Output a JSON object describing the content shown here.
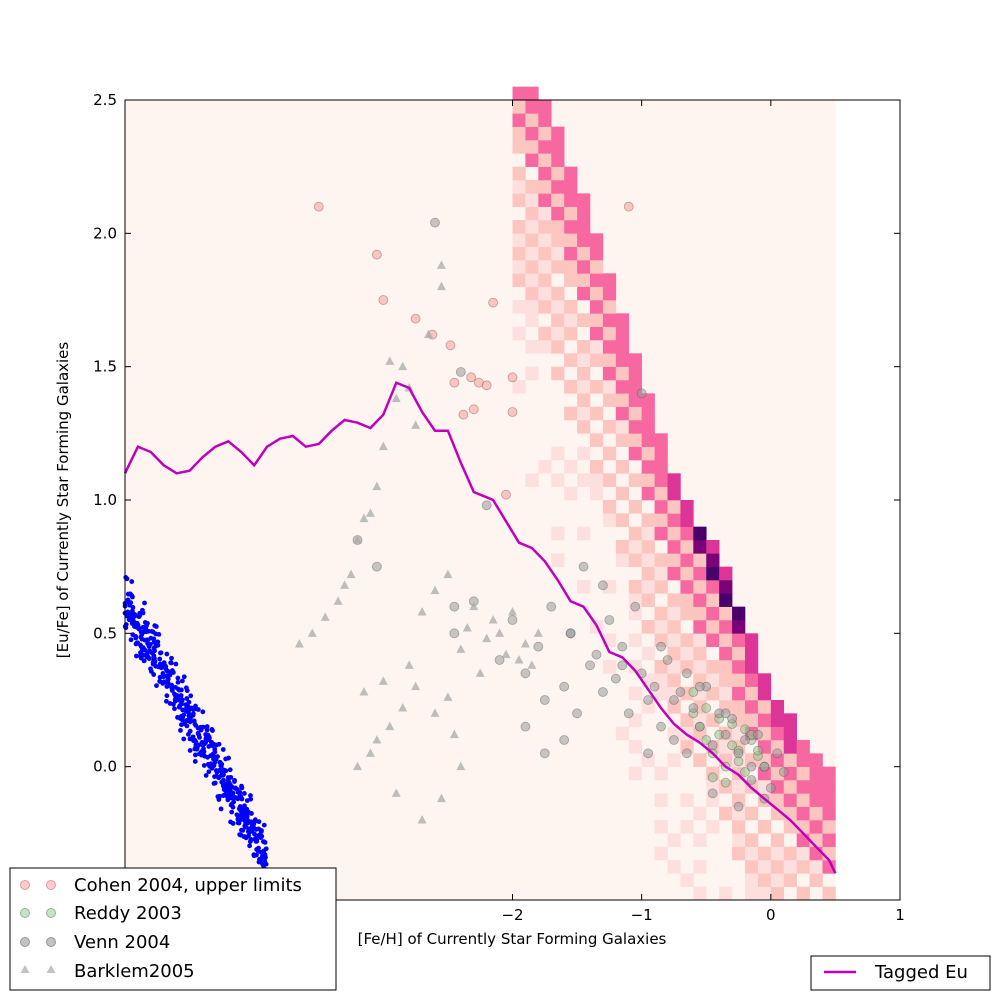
{
  "chart_data": {
    "type": "scatter",
    "title": "",
    "xlabel": "[Fe/H] of Currently Star Forming Galaxies",
    "ylabel": "[Eu/Fe] of Currently Star Forming Galaxies",
    "xlim": [
      -5,
      1
    ],
    "ylim": [
      -0.5,
      2.5
    ],
    "xticks": [
      -2,
      -1,
      0,
      1
    ],
    "xtick_labels": [
      "−2",
      "−1",
      "0",
      "1"
    ],
    "yticks": [
      0.0,
      0.5,
      1.0,
      1.5,
      2.0,
      2.5
    ],
    "ytick_labels": [
      "0.0",
      "0.5",
      "1.0",
      "1.5",
      "2.0",
      "2.5"
    ],
    "grid": false,
    "legends": [
      {
        "placement": "lower-left",
        "entries": [
          "Cohen 2004, upper limits",
          "Reddy 2003",
          "Venn 2004",
          "Barklem2005"
        ]
      },
      {
        "placement": "lower-right",
        "entries": [
          "Tagged Eu"
        ]
      }
    ],
    "heatmap": {
      "description_colors": [
        "#fff5f0",
        "#fcc5c0",
        "#f768a1",
        "#dd3497",
        "#7a0177",
        "#49006a"
      ],
      "ridge": [
        [
          0.5,
          -0.1
        ],
        [
          0.0,
          0.25
        ],
        [
          -0.4,
          0.75
        ],
        [
          -0.7,
          1.0
        ],
        [
          -1.0,
          1.4
        ],
        [
          -1.3,
          1.9
        ],
        [
          -1.7,
          2.4
        ]
      ],
      "cell_dx": 0.1,
      "cell_dy": 0.05
    },
    "series": [
      {
        "name": "Tagged Eu",
        "kind": "line",
        "color": "#bf00bf",
        "x": [
          -5.0,
          -4.9,
          -4.8,
          -4.7,
          -4.6,
          -4.5,
          -4.4,
          -4.3,
          -4.2,
          -4.1,
          -4.0,
          -3.9,
          -3.8,
          -3.7,
          -3.6,
          -3.5,
          -3.4,
          -3.3,
          -3.2,
          -3.1,
          -3.0,
          -2.9,
          -2.8,
          -2.7,
          -2.6,
          -2.5,
          -2.4,
          -2.3,
          -2.2,
          -2.15,
          -2.05,
          -1.95,
          -1.85,
          -1.75,
          -1.65,
          -1.55,
          -1.45,
          -1.35,
          -1.25,
          -1.15,
          -1.05,
          -0.95,
          -0.85,
          -0.75,
          -0.65,
          -0.55,
          -0.45,
          -0.35,
          -0.25,
          -0.15,
          -0.05,
          0.05,
          0.15,
          0.25,
          0.35,
          0.45,
          0.5
        ],
        "y": [
          1.1,
          1.2,
          1.18,
          1.13,
          1.1,
          1.11,
          1.16,
          1.2,
          1.22,
          1.18,
          1.13,
          1.2,
          1.23,
          1.24,
          1.2,
          1.21,
          1.26,
          1.3,
          1.29,
          1.27,
          1.32,
          1.44,
          1.42,
          1.33,
          1.26,
          1.26,
          1.14,
          1.03,
          1.01,
          1.0,
          0.92,
          0.84,
          0.82,
          0.77,
          0.7,
          0.62,
          0.6,
          0.53,
          0.43,
          0.41,
          0.36,
          0.29,
          0.22,
          0.16,
          0.12,
          0.09,
          0.05,
          0.0,
          -0.03,
          -0.08,
          -0.12,
          -0.16,
          -0.2,
          -0.25,
          -0.3,
          -0.35,
          -0.4
        ]
      },
      {
        "name": "Cohen 2004, upper limits",
        "kind": "scatter",
        "marker": "circle",
        "color": "#ff9999",
        "x": [
          -3.5,
          -3.05,
          -3.0,
          -2.75,
          -2.62,
          -2.48,
          -2.45,
          -2.38,
          -2.32,
          -2.3,
          -2.26,
          -2.2,
          -2.15,
          -2.05,
          -2.0,
          -2.0,
          -1.1
        ],
        "y": [
          2.1,
          1.92,
          1.75,
          1.68,
          1.62,
          1.58,
          1.44,
          1.32,
          1.46,
          1.34,
          1.44,
          1.43,
          1.74,
          1.02,
          1.46,
          1.33,
          2.1
        ]
      },
      {
        "name": "Reddy 2003",
        "kind": "scatter",
        "marker": "circle",
        "color": "#90c890",
        "x": [
          -0.6,
          -0.55,
          -0.5,
          -0.45,
          -0.4,
          -0.35,
          -0.3,
          -0.25,
          -0.2,
          -0.15,
          -0.1,
          -0.05,
          -0.6,
          -0.5,
          -0.4,
          -0.3,
          -0.2,
          -0.1,
          -0.45,
          -0.35,
          -0.25,
          -0.15
        ],
        "y": [
          0.2,
          0.15,
          0.1,
          0.05,
          0.12,
          0.0,
          0.08,
          0.02,
          -0.02,
          0.1,
          0.04,
          0.0,
          0.28,
          0.22,
          0.18,
          0.16,
          0.14,
          0.06,
          -0.04,
          -0.06,
          0.06,
          0.12
        ]
      },
      {
        "name": "Venn 2004",
        "kind": "scatter",
        "marker": "circle",
        "color": "#999999",
        "x": [
          -2.3,
          -2.45,
          -2.1,
          -2.0,
          -1.9,
          -1.8,
          -1.75,
          -1.7,
          -1.6,
          -1.55,
          -1.5,
          -1.4,
          -1.3,
          -1.2,
          -1.15,
          -1.1,
          -1.0,
          -0.95,
          -0.9,
          -0.85,
          -0.8,
          -0.75,
          -0.7,
          -0.65,
          -0.6,
          -0.55,
          -0.5,
          -0.45,
          -0.4,
          -0.35,
          -0.3,
          -0.25,
          -0.2,
          -0.15,
          -0.1,
          -0.05,
          0.0,
          0.05,
          0.1,
          -1.0,
          -1.3,
          -1.6,
          -1.9,
          -2.2,
          -2.4,
          -1.45,
          -1.25,
          -1.05,
          -0.85,
          -0.65,
          -0.45,
          -0.25,
          -0.05,
          -1.75,
          -1.55,
          -1.35,
          -1.15,
          -0.95,
          -0.75,
          -0.55,
          -0.35,
          -0.15,
          -3.2,
          -3.05,
          -2.6,
          -2.45
        ],
        "y": [
          0.62,
          0.5,
          0.4,
          0.55,
          0.35,
          0.45,
          0.25,
          0.6,
          0.3,
          0.5,
          0.2,
          0.38,
          0.28,
          0.33,
          0.45,
          0.2,
          0.35,
          0.25,
          0.3,
          0.15,
          0.4,
          0.1,
          0.28,
          0.05,
          0.22,
          0.15,
          0.3,
          0.08,
          0.2,
          0.12,
          0.18,
          0.05,
          0.1,
          -0.05,
          0.12,
          0.0,
          -0.08,
          0.05,
          -0.02,
          1.4,
          0.68,
          0.1,
          0.15,
          0.98,
          1.48,
          0.75,
          0.55,
          0.6,
          0.45,
          0.35,
          -0.1,
          -0.15,
          -0.12,
          0.05,
          0.5,
          0.42,
          0.38,
          0.05,
          0.25,
          0.3,
          0.2,
          0.0,
          0.85,
          0.75,
          2.04,
          0.6
        ]
      },
      {
        "name": "Barklem2005",
        "kind": "scatter",
        "marker": "triangle",
        "color": "#aaaaaa",
        "x": [
          -2.55,
          -2.55,
          -2.65,
          -2.75,
          -2.8,
          -2.85,
          -2.9,
          -2.95,
          -3.0,
          -3.05,
          -3.1,
          -3.15,
          -3.2,
          -3.25,
          -3.3,
          -3.35,
          -3.45,
          -3.55,
          -3.65,
          -2.6,
          -2.7,
          -2.5,
          -2.4,
          -2.35,
          -2.3,
          -2.25,
          -2.2,
          -2.15,
          -2.1,
          -2.05,
          -2.0,
          -1.95,
          -1.9,
          -1.85,
          -1.8,
          -2.75,
          -2.85,
          -2.95,
          -3.05,
          -3.1,
          -3.2,
          -2.6,
          -2.45,
          -2.5,
          -2.8,
          -3.0,
          -3.15,
          -2.9,
          -2.7,
          -2.55,
          -2.4
        ],
        "y": [
          1.88,
          1.8,
          1.62,
          1.28,
          1.42,
          1.5,
          1.38,
          1.52,
          1.2,
          1.05,
          0.95,
          0.93,
          0.85,
          0.72,
          0.68,
          0.62,
          0.56,
          0.5,
          0.46,
          0.66,
          0.58,
          0.72,
          0.44,
          0.52,
          0.6,
          0.35,
          0.48,
          0.55,
          0.5,
          0.42,
          0.58,
          0.4,
          0.46,
          0.38,
          0.5,
          0.3,
          0.22,
          0.15,
          0.1,
          0.05,
          0.0,
          0.2,
          0.12,
          0.26,
          0.38,
          0.32,
          0.28,
          -0.1,
          -0.2,
          -0.12,
          0.0
        ]
      },
      {
        "name": "",
        "kind": "scatter",
        "marker": "dot",
        "color": "#0000ff",
        "band": {
          "x_range": [
            -5.0,
            -3.9
          ],
          "y_at_xmin": 0.62,
          "y_at_xmax": -0.35,
          "scatter": 0.07,
          "count": 520
        }
      }
    ]
  }
}
